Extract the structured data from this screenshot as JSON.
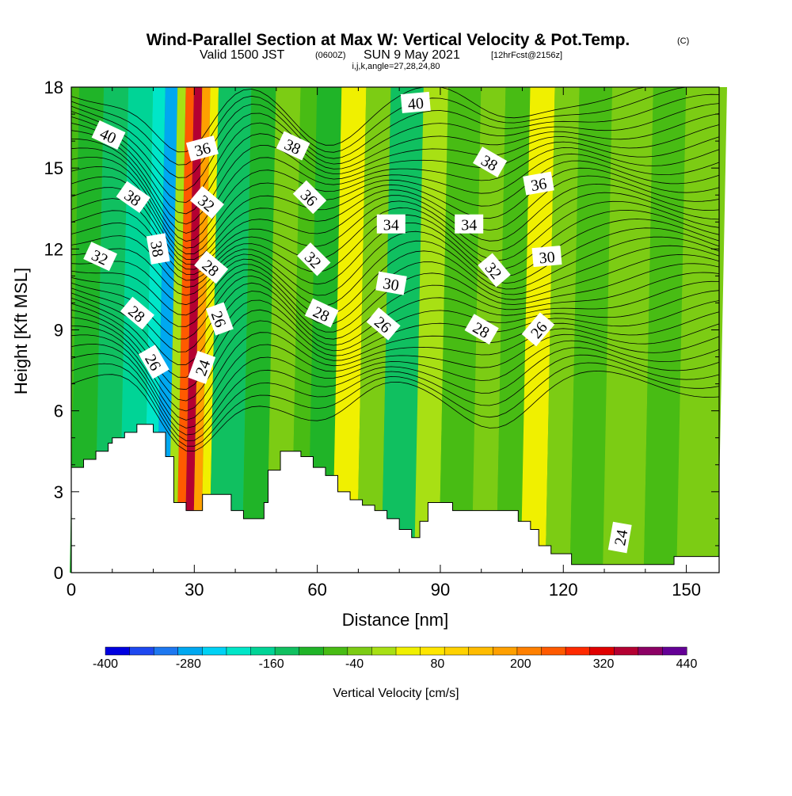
{
  "header": {
    "title": "Wind-Parallel Section at Max W: Vertical Velocity & Pot.Temp.",
    "copyright": "(C)",
    "valid_prefix": "Valid 1500 JST",
    "valid_utc": "(0600Z)",
    "valid_date": "SUN 9 May 2021",
    "forecast": "[12hrFcst@2156z]",
    "indices": "i,j,k,angle=27,28,24,80"
  },
  "chart_data": {
    "type": "contour-section",
    "xlabel": "Distance [nm]",
    "ylabel": "Height [Kft MSL]",
    "xlim": [
      0,
      158
    ],
    "ylim": [
      0,
      18
    ],
    "xticks": [
      "0",
      "30",
      "60",
      "90",
      "120",
      "150"
    ],
    "yticks": [
      "0",
      "3",
      "6",
      "9",
      "12",
      "15",
      "18"
    ],
    "colorbar": {
      "label": "Vertical Velocity [cm/s]",
      "tick_labels": [
        "-400",
        "-280",
        "-160",
        "-40",
        "80",
        "200",
        "320",
        "440"
      ],
      "levels_min": -400,
      "levels_max": 440,
      "step": 40,
      "colors": [
        "#0000e0",
        "#1e48f0",
        "#1e78f0",
        "#00a8f0",
        "#00d2f5",
        "#00e6c8",
        "#00d496",
        "#10c060",
        "#20b428",
        "#48bc14",
        "#7ccc14",
        "#a8e014",
        "#f0f000",
        "#ffe600",
        "#ffd200",
        "#ffbc00",
        "#ffa000",
        "#ff8000",
        "#ff5a00",
        "#ff2a00",
        "#e00000",
        "#b40032",
        "#8c0064",
        "#640096"
      ]
    },
    "velocity_bands": [
      {
        "x": 0,
        "w": 6,
        "value": -80
      },
      {
        "x": 6,
        "w": 6,
        "value": -120
      },
      {
        "x": 12,
        "w": 6,
        "value": -160
      },
      {
        "x": 18,
        "w": 3,
        "value": -200
      },
      {
        "x": 21,
        "w": 3,
        "value": -280
      },
      {
        "x": 24,
        "w": 2,
        "value": 40
      },
      {
        "x": 26,
        "w": 2,
        "value": 320
      },
      {
        "x": 28,
        "w": 2,
        "value": 440
      },
      {
        "x": 30,
        "w": 2,
        "value": 240
      },
      {
        "x": 32,
        "w": 2,
        "value": 80
      },
      {
        "x": 34,
        "w": 8,
        "value": -120
      },
      {
        "x": 42,
        "w": 6,
        "value": -80
      },
      {
        "x": 48,
        "w": 6,
        "value": 0
      },
      {
        "x": 54,
        "w": 4,
        "value": -40
      },
      {
        "x": 58,
        "w": 6,
        "value": -80
      },
      {
        "x": 64,
        "w": 6,
        "value": 80
      },
      {
        "x": 70,
        "w": 6,
        "value": 0
      },
      {
        "x": 76,
        "w": 8,
        "value": -120
      },
      {
        "x": 84,
        "w": 6,
        "value": 40
      },
      {
        "x": 90,
        "w": 8,
        "value": -40
      },
      {
        "x": 98,
        "w": 6,
        "value": 0
      },
      {
        "x": 104,
        "w": 6,
        "value": -40
      },
      {
        "x": 110,
        "w": 6,
        "value": 80
      },
      {
        "x": 116,
        "w": 6,
        "value": 0
      },
      {
        "x": 122,
        "w": 8,
        "value": -40
      },
      {
        "x": 130,
        "w": 10,
        "value": 0
      },
      {
        "x": 140,
        "w": 8,
        "value": -40
      },
      {
        "x": 148,
        "w": 10,
        "value": 0
      }
    ],
    "terrain": [
      [
        0,
        3.9
      ],
      [
        3,
        4.2
      ],
      [
        6,
        4.5
      ],
      [
        9,
        4.8
      ],
      [
        10,
        5.0
      ],
      [
        13,
        5.2
      ],
      [
        16,
        5.5
      ],
      [
        18,
        5.5
      ],
      [
        20,
        5.2
      ],
      [
        23,
        4.3
      ],
      [
        25,
        2.6
      ],
      [
        28,
        2.3
      ],
      [
        30,
        2.3
      ],
      [
        32,
        2.9
      ],
      [
        36,
        2.9
      ],
      [
        39,
        2.3
      ],
      [
        42,
        2.0
      ],
      [
        45,
        2.0
      ],
      [
        47,
        2.6
      ],
      [
        48,
        3.8
      ],
      [
        51,
        4.5
      ],
      [
        54,
        4.5
      ],
      [
        56,
        4.3
      ],
      [
        59,
        3.9
      ],
      [
        62,
        3.6
      ],
      [
        65,
        3.0
      ],
      [
        68,
        2.7
      ],
      [
        71,
        2.5
      ],
      [
        74,
        2.3
      ],
      [
        77,
        2.0
      ],
      [
        80,
        1.6
      ],
      [
        83,
        1.3
      ],
      [
        85,
        1.9
      ],
      [
        87,
        2.6
      ],
      [
        90,
        2.6
      ],
      [
        93,
        2.3
      ],
      [
        96,
        2.3
      ],
      [
        100,
        2.3
      ],
      [
        106,
        2.3
      ],
      [
        109,
        1.9
      ],
      [
        112,
        1.6
      ],
      [
        114,
        1.0
      ],
      [
        117,
        0.7
      ],
      [
        120,
        0.7
      ],
      [
        122,
        0.3
      ],
      [
        128,
        0.3
      ],
      [
        134,
        0.3
      ],
      [
        140,
        0.3
      ],
      [
        145,
        0.3
      ],
      [
        147,
        0.6
      ],
      [
        150,
        0.6
      ],
      [
        154,
        0.6
      ],
      [
        158,
        0.6
      ]
    ],
    "theta_labels": [
      {
        "text": "40",
        "x": 9,
        "y": 16.2,
        "r": 25
      },
      {
        "text": "38",
        "x": 15,
        "y": 13.9,
        "r": 35
      },
      {
        "text": "32",
        "x": 7,
        "y": 11.7,
        "r": 25
      },
      {
        "text": "28",
        "x": 16,
        "y": 9.6,
        "r": 40
      },
      {
        "text": "26",
        "x": 20,
        "y": 7.8,
        "r": 60
      },
      {
        "text": "38",
        "x": 21,
        "y": 12.0,
        "r": 80
      },
      {
        "text": "36",
        "x": 32,
        "y": 15.7,
        "r": -15
      },
      {
        "text": "32",
        "x": 33,
        "y": 13.7,
        "r": 40
      },
      {
        "text": "28",
        "x": 34,
        "y": 11.3,
        "r": 40
      },
      {
        "text": "26",
        "x": 36,
        "y": 9.4,
        "r": 70
      },
      {
        "text": "24",
        "x": 32,
        "y": 7.6,
        "r": -70
      },
      {
        "text": "38",
        "x": 54,
        "y": 15.8,
        "r": 25
      },
      {
        "text": "36",
        "x": 58,
        "y": 13.9,
        "r": 45
      },
      {
        "text": "32",
        "x": 59,
        "y": 11.6,
        "r": 45
      },
      {
        "text": "28",
        "x": 61,
        "y": 9.6,
        "r": 25
      },
      {
        "text": "40",
        "x": 84,
        "y": 17.4,
        "r": -5
      },
      {
        "text": "34",
        "x": 78,
        "y": 12.9,
        "r": 0
      },
      {
        "text": "30",
        "x": 78,
        "y": 10.7,
        "r": 10
      },
      {
        "text": "26",
        "x": 76,
        "y": 9.2,
        "r": 40
      },
      {
        "text": "38",
        "x": 102,
        "y": 15.2,
        "r": 30
      },
      {
        "text": "34",
        "x": 97,
        "y": 12.9,
        "r": 0
      },
      {
        "text": "32",
        "x": 103,
        "y": 11.2,
        "r": 50
      },
      {
        "text": "28",
        "x": 100,
        "y": 9.0,
        "r": 30
      },
      {
        "text": "36",
        "x": 114,
        "y": 14.4,
        "r": -10
      },
      {
        "text": "30",
        "x": 116,
        "y": 11.7,
        "r": -5
      },
      {
        "text": "26",
        "x": 114,
        "y": 9.0,
        "r": -50
      },
      {
        "text": "24",
        "x": 134,
        "y": 1.3,
        "r": -80
      }
    ]
  }
}
